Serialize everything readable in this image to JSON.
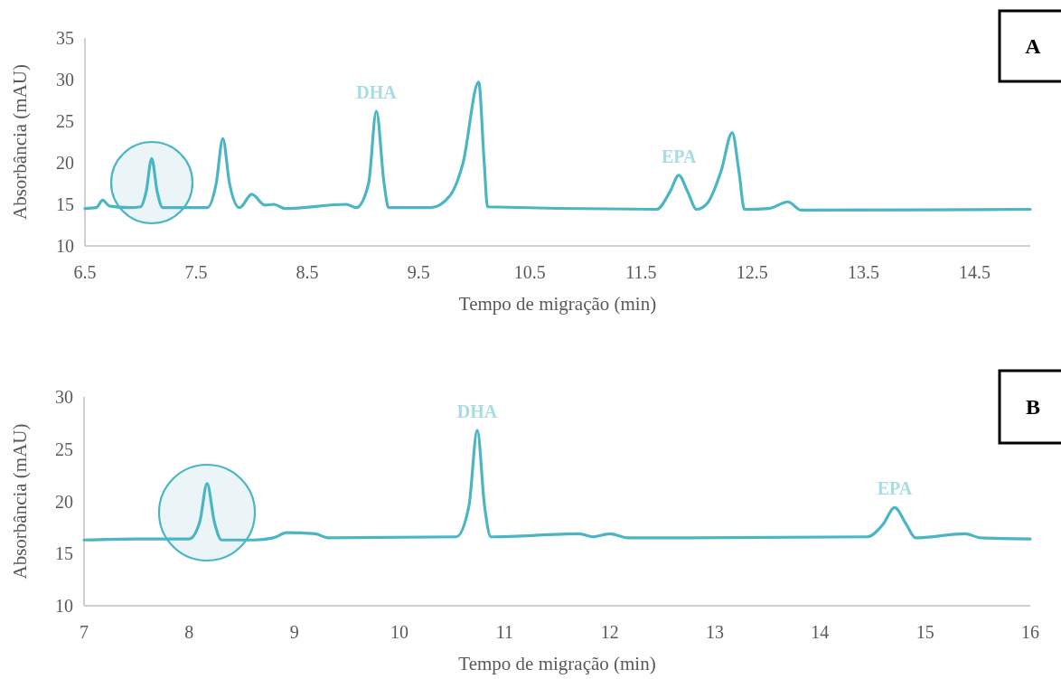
{
  "chart_data": [
    {
      "type": "line",
      "title": "A",
      "xlabel": "Tempo de migração (min)",
      "ylabel": "Absorbância (mAU)",
      "xlim": [
        6.5,
        15
      ],
      "xticks": [
        6.5,
        7.5,
        8.5,
        9.5,
        10.5,
        11.5,
        12.5,
        13.5,
        14.5
      ],
      "ylim": [
        10,
        35
      ],
      "yticks": [
        10,
        15,
        20,
        25,
        30,
        35
      ],
      "grid": false,
      "series": [
        {
          "color": "#4ab5c4",
          "x": [
            6.5,
            6.6,
            6.66,
            6.72,
            6.9,
            7.0,
            7.05,
            7.1,
            7.15,
            7.2,
            7.6,
            7.68,
            7.74,
            7.8,
            7.89,
            8.0,
            8.12,
            8.2,
            8.3,
            8.85,
            8.94,
            9.05,
            9.12,
            9.19,
            9.23,
            9.61,
            9.78,
            9.9,
            10.04,
            10.09,
            10.12,
            11.64,
            11.76,
            11.84,
            11.92,
            12.0,
            12.1,
            12.22,
            12.32,
            12.38,
            12.43,
            12.65,
            12.82,
            12.94,
            15.0
          ],
          "values": [
            14.5,
            14.6,
            15.5,
            14.8,
            14.6,
            14.7,
            16.5,
            20.5,
            16.5,
            14.6,
            14.6,
            17.5,
            22.9,
            17.5,
            14.6,
            16.2,
            14.9,
            15.0,
            14.5,
            15.0,
            14.6,
            17.5,
            26.2,
            17.5,
            14.6,
            14.6,
            16.0,
            20.0,
            29.7,
            20.0,
            14.7,
            14.4,
            16.5,
            18.5,
            16.5,
            14.4,
            15.2,
            19.0,
            23.6,
            19.0,
            14.4,
            14.5,
            15.3,
            14.3,
            14.4
          ]
        }
      ],
      "annotations": [
        {
          "text": "DHA",
          "x": 9.12,
          "y": 26.2
        },
        {
          "text": "EPA",
          "x": 11.84,
          "y": 18.5
        }
      ]
    },
    {
      "type": "line",
      "title": "B",
      "xlabel": "Tempo de migração (min)",
      "ylabel": "Absorbância (mAU)",
      "xlim": [
        7,
        16
      ],
      "xticks": [
        7,
        8,
        9,
        10,
        11,
        12,
        13,
        14,
        15,
        16
      ],
      "ylim": [
        10,
        30
      ],
      "yticks": [
        10,
        15,
        20,
        25,
        30
      ],
      "grid": false,
      "series": [
        {
          "color": "#4ab5c4",
          "x": [
            7,
            7.5,
            8.0,
            8.1,
            8.17,
            8.24,
            8.31,
            8.62,
            8.8,
            8.93,
            9.2,
            9.32,
            10.54,
            10.66,
            10.74,
            10.81,
            10.87,
            11.71,
            11.84,
            12.0,
            12.17,
            14.45,
            14.6,
            14.71,
            14.82,
            14.91,
            15.38,
            15.53,
            16
          ],
          "values": [
            16.3,
            16.4,
            16.4,
            18.0,
            21.7,
            18.0,
            16.3,
            16.3,
            16.5,
            17.0,
            16.9,
            16.5,
            16.6,
            19.5,
            26.8,
            19.5,
            16.6,
            16.9,
            16.6,
            16.9,
            16.5,
            16.6,
            17.8,
            19.4,
            17.8,
            16.5,
            16.9,
            16.5,
            16.4
          ]
        }
      ],
      "annotations": [
        {
          "text": "DHA",
          "x": 10.74,
          "y": 26.8
        },
        {
          "text": "EPA",
          "x": 14.71,
          "y": 19.4
        }
      ]
    }
  ]
}
